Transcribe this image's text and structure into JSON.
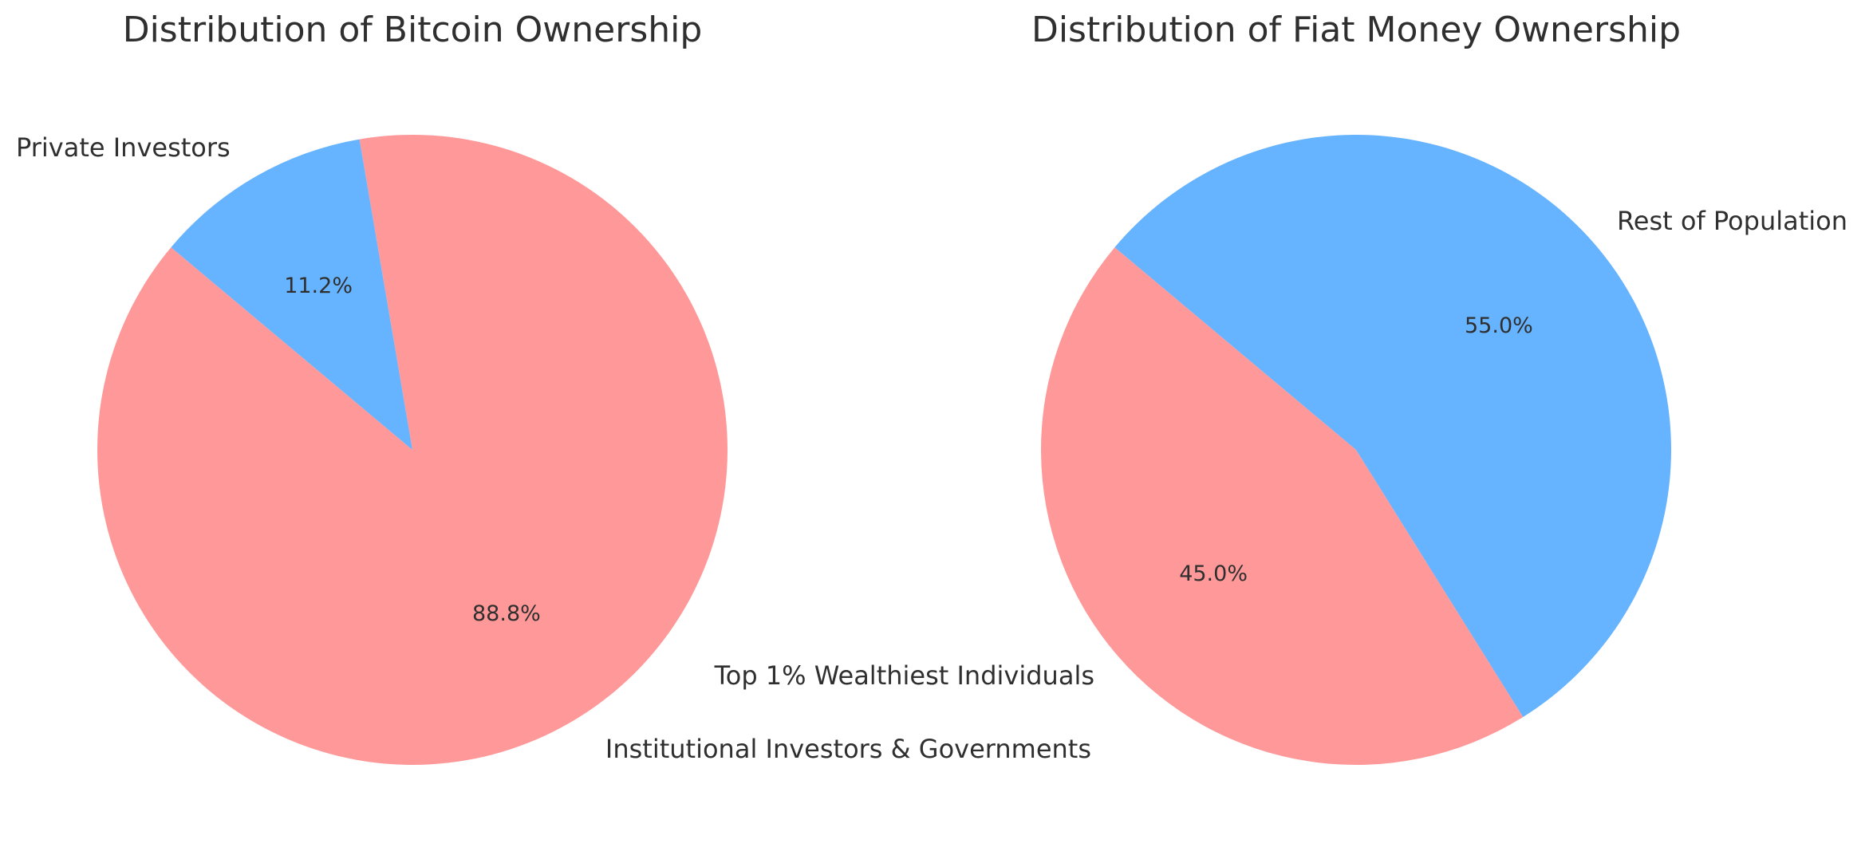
{
  "chart_data": [
    {
      "type": "pie",
      "title": "Distribution of Bitcoin Ownership",
      "slices": [
        {
          "label": "Institutional Investors & Governments",
          "value": 88.8,
          "pct_label": "88.8%",
          "color": "#ff9999"
        },
        {
          "label": "Private Investors",
          "value": 11.2,
          "pct_label": "11.2%",
          "color": "#66b3ff"
        }
      ],
      "start_angle_deg": 140,
      "direction": "counterclockwise"
    },
    {
      "type": "pie",
      "title": "Distribution of Fiat Money Ownership",
      "slices": [
        {
          "label": "Top 1% Wealthiest Individuals",
          "value": 45.0,
          "pct_label": "45.0%",
          "color": "#ff9999"
        },
        {
          "label": "Rest of Population",
          "value": 55.0,
          "pct_label": "55.0%",
          "color": "#66b3ff"
        }
      ],
      "start_angle_deg": 140,
      "direction": "counterclockwise"
    }
  ]
}
